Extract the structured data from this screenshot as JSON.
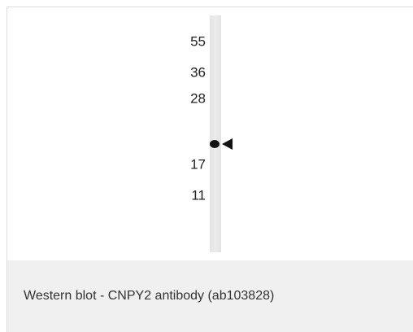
{
  "blot": {
    "markers": [
      "55",
      "36",
      "28",
      "17",
      "11"
    ]
  },
  "caption": "Western blot - CNPY2 antibody (ab103828)"
}
